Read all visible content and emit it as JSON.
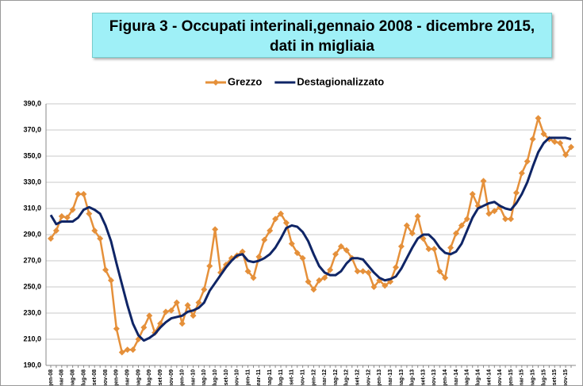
{
  "chart_data": {
    "type": "line",
    "title": "Figura 3 - Occupati interinali,gennaio 2008 - dicembre 2015, dati in migliaia",
    "categories": [
      "gen-08",
      null,
      "mar-08",
      null,
      "mag-08",
      null,
      "lug-08",
      null,
      "set-08",
      null,
      "nov-08",
      null,
      "gen-09",
      null,
      "mar-09",
      null,
      "mag-09",
      null,
      "lug-09",
      null,
      "set-09",
      null,
      "nov-09",
      null,
      "gen-10",
      null,
      "mar-10",
      null,
      "mag-10",
      null,
      "lug-10",
      null,
      "set-10",
      null,
      "nov-10",
      null,
      "gen-11",
      null,
      "mar-11",
      null,
      "mag-11",
      null,
      "lug-11",
      null,
      "set-11",
      null,
      "nov-11",
      null,
      "gen-12",
      null,
      "mar-12",
      null,
      "mag-12",
      null,
      "lug-12",
      null,
      "set-12",
      null,
      "nov-12",
      null,
      "gen-13",
      null,
      "mar-13",
      null,
      "mag-13",
      null,
      "lug-13",
      null,
      "set-13",
      null,
      "nov-13",
      null,
      "gen-14",
      null,
      "mar-14",
      null,
      "mag-14",
      null,
      "lug-14",
      null,
      "set-14",
      null,
      "nov-14",
      null,
      "gen-15",
      null,
      "mar-15",
      null,
      "mag-15",
      null,
      "lug-15",
      null,
      "set-15",
      null,
      "nov-15",
      null
    ],
    "series": [
      {
        "name": "Grezzo",
        "color": "#e5903a",
        "marker": "diamond",
        "values": [
          287,
          293,
          304,
          303,
          309,
          321,
          321,
          306,
          293,
          287,
          263,
          255,
          218,
          200,
          202,
          202,
          210,
          219,
          228,
          215,
          222,
          231,
          232,
          238,
          222,
          236,
          228,
          238,
          248,
          266,
          294,
          261,
          267,
          272,
          274,
          277,
          262,
          257,
          273,
          286,
          293,
          302,
          306,
          299,
          283,
          276,
          272,
          254,
          248,
          255,
          257,
          263,
          275,
          281,
          278,
          272,
          262,
          262,
          261,
          250,
          255,
          251,
          254,
          265,
          281,
          297,
          291,
          304,
          287,
          279,
          279,
          262,
          257,
          280,
          291,
          297,
          302,
          321,
          312,
          331,
          306,
          308,
          311,
          302,
          302,
          322,
          337,
          346,
          363,
          379,
          367,
          363,
          361,
          360,
          351,
          357
        ]
      },
      {
        "name": "Destagionalizzato",
        "color": "#0f2566",
        "values": [
          305,
          298,
          300,
          300,
          300,
          303,
          309,
          311,
          309,
          306,
          297,
          285,
          268,
          252,
          236,
          222,
          213,
          209,
          211,
          214,
          219,
          223,
          226,
          227,
          228,
          231,
          232,
          234,
          238,
          247,
          253,
          259,
          265,
          270,
          274,
          275,
          270,
          269,
          270,
          272,
          275,
          280,
          287,
          295,
          297,
          296,
          292,
          285,
          275,
          266,
          261,
          259,
          259,
          262,
          268,
          272,
          272,
          271,
          266,
          261,
          257,
          255,
          256,
          258,
          264,
          272,
          280,
          287,
          290,
          290,
          286,
          280,
          276,
          275,
          277,
          283,
          293,
          303,
          310,
          312,
          314,
          315,
          312,
          310,
          309,
          314,
          321,
          330,
          342,
          353,
          360,
          364,
          364,
          364,
          364,
          363
        ]
      }
    ],
    "ylim": [
      190,
      390
    ],
    "yticks": [
      {
        "value": 190,
        "label": "190,0"
      },
      {
        "value": 210,
        "label": "210,0"
      },
      {
        "value": 230,
        "label": "230,0"
      },
      {
        "value": 250,
        "label": "250,0"
      },
      {
        "value": 270,
        "label": "270,0"
      },
      {
        "value": 290,
        "label": "290,0"
      },
      {
        "value": 310,
        "label": "310,0"
      },
      {
        "value": 330,
        "label": "330,0"
      },
      {
        "value": 350,
        "label": "350,0"
      },
      {
        "value": 370,
        "label": "370,0"
      },
      {
        "value": 390,
        "label": "390,0"
      }
    ],
    "grid": true,
    "legend": "top"
  }
}
